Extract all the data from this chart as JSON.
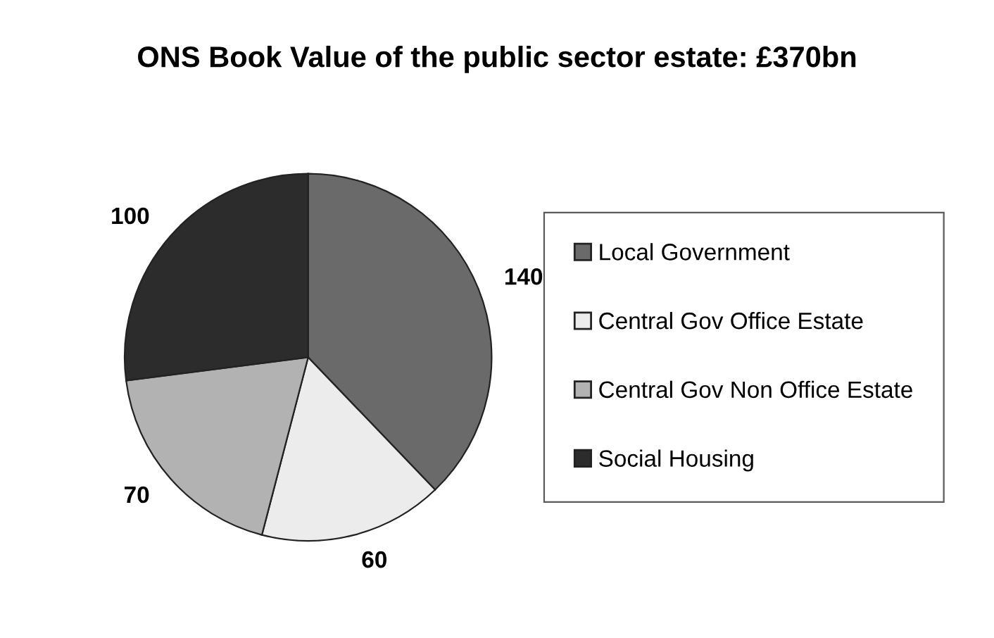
{
  "chart_data": {
    "type": "pie",
    "title": "ONS Book Value of the public sector estate: £370bn",
    "categories": [
      "Local Government",
      "Central Gov Office Estate",
      "Central Gov Non Office Estate",
      "Social Housing"
    ],
    "values": [
      140,
      60,
      70,
      100
    ],
    "colors": [
      "#6a6a6a",
      "#ececec",
      "#b2b2b2",
      "#2c2c2c"
    ],
    "data_labels": true,
    "legend": "right"
  }
}
